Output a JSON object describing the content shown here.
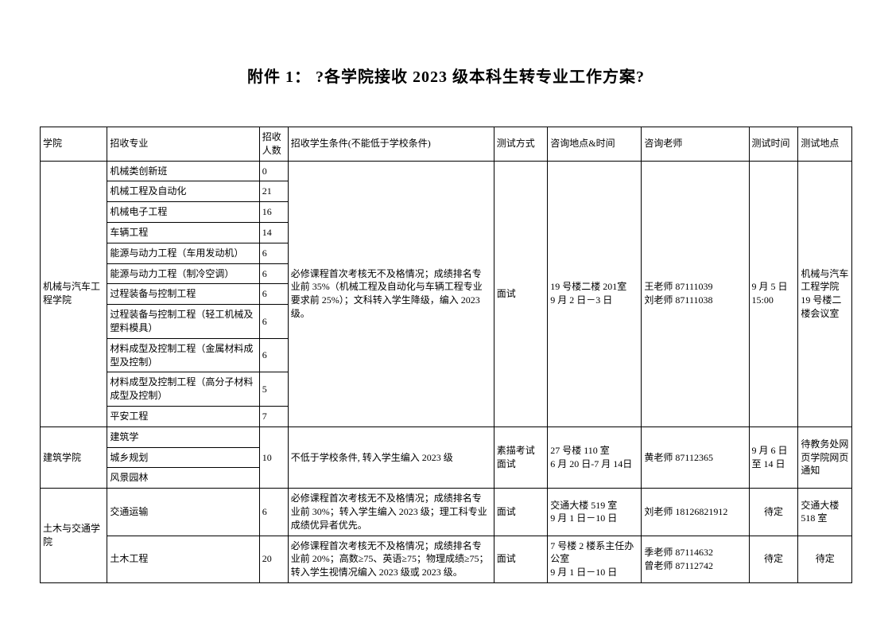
{
  "title": "附件 1：  ?各学院接收 2023 级本科生转专业工作方案?",
  "headers": {
    "college": "学院",
    "major": "招收专业",
    "quota": "招收人数",
    "condition": "招收学生条件(不能低于学校条件)",
    "method": "测试方式",
    "place": "咨询地点&时间",
    "teacher": "咨询老师",
    "testtime": "测试时间",
    "testplace": "测试地点"
  },
  "g1": {
    "college": "机械与汽车工程学院",
    "majors": [
      "机械类创新班",
      "机械工程及自动化",
      "机械电子工程",
      "车辆工程",
      "能源与动力工程（车用发动机）",
      "能源与动力工程（制冷空调）",
      "过程装备与控制工程",
      "过程装备与控制工程（轻工机械及塑料模具）",
      "材料成型及控制工程（金属材料成型及控制）",
      "材料成型及控制工程（高分子材料成型及控制）",
      "平安工程"
    ],
    "quotas": [
      "0",
      "21",
      "16",
      "14",
      "6",
      "6",
      "6",
      "6",
      "6",
      "5",
      "7"
    ],
    "condition": "必修课程首次考核无不及格情况；成绩排名专业前 35%（机械工程及自动化与车辆工程专业要求前 25%）；文科转入学生降级，编入 2023 级。",
    "method": "面试",
    "place": "19 号楼二楼 201室\n9 月 2 日－3 日",
    "teacher": "王老师 87111039\n刘老师 87111038",
    "testtime": "9 月 5 日 15:00",
    "testplace": "机械与汽车工程学院 19 号楼二楼会议室"
  },
  "g2": {
    "college": "建筑学院",
    "majors": [
      "建筑学",
      "城乡规划",
      "风景园林"
    ],
    "quota": "10",
    "condition": "不低于学校条件, 转入学生编入 2023 级",
    "method": "素描考试\n面试",
    "place": "27 号楼 110 室\n6 月 20 日-7 月 14日",
    "teacher": "黄老师  87112365",
    "testtime": " 9 月 6 日至 14 日",
    "testplace": "待教务处网页学院网页通知"
  },
  "g3": {
    "college": "土木与交通学院",
    "r1": {
      "major": "交通运输",
      "quota": "6",
      "condition": "必修课程首次考核无不及格情况；成绩排名专业前 30%；转入学生编入 2023 级；理工科专业成绩优异者优先。",
      "method": "面试",
      "place": "交通大楼 519 室\n9 月 1 日－10 日",
      "teacher": "刘老师 18126821912",
      "testtime": "待定",
      "testplace": "交通大楼 518 室"
    },
    "r2": {
      "major": "土木工程",
      "quota": "20",
      "condition": "必修课程首次考核无不及格情况；成绩排名专业前 20%；高数≥75、英语≥75；物理成绩≥75；转入学生视情况编入 2023 级或 2023 级。",
      "method": "面试",
      "place": "7 号楼  2 楼系主任办公室\n9 月 1 日－10 日",
      "teacher": "季老师 87114632\n曾老师 87112742",
      "testtime": "待定",
      "testplace": "待定"
    }
  }
}
